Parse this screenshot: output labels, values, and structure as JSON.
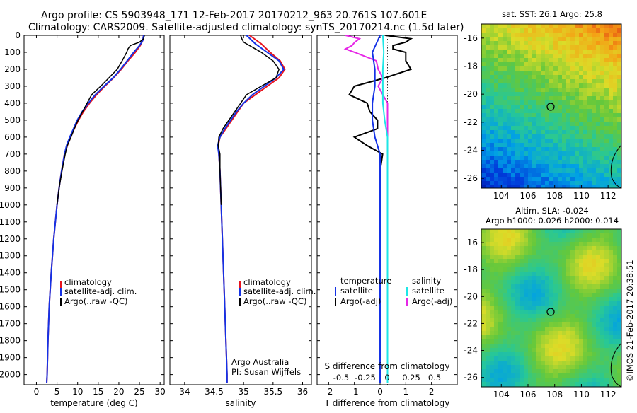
{
  "header": {
    "line1": "Argo profile: CS 5903948_171 12-Feb-2017 20170212_963 20.761S 107.601E",
    "line2": "Climatology: CARS2009. Satellite-adjusted climatology: synTS_20170214.nc (1.5d later)"
  },
  "colors": {
    "clim": "#e8141e",
    "sat": "#1432e6",
    "argo": "#000000",
    "sal_sat": "#1ee6e6",
    "sal_argo": "#e628e6"
  },
  "chart_data": [
    {
      "type": "line",
      "id": "temperature",
      "xlabel": "temperature (deg C)",
      "xlim": [
        -3,
        31
      ],
      "xticks": [
        "0",
        "5",
        "10",
        "15",
        "20",
        "25",
        "30"
      ],
      "ylim": [
        0,
        2060
      ],
      "yticks": [
        "0",
        "100",
        "200",
        "300",
        "400",
        "500",
        "600",
        "700",
        "800",
        "900",
        "1000",
        "1100",
        "1200",
        "1300",
        "1400",
        "1500",
        "1600",
        "1700",
        "1800",
        "1900",
        "2000"
      ],
      "legend": [
        "climatology",
        "satellite-adj. clim.",
        "Argo(..raw -QC)"
      ],
      "series": [
        {
          "name": "climatology",
          "depth": [
            0,
            30,
            60,
            100,
            150,
            200,
            250,
            300,
            350,
            400,
            450,
            500,
            550,
            600,
            650,
            700,
            800,
            900,
            1000,
            1200,
            1400,
            1600,
            1800,
            2000,
            2050
          ],
          "values": [
            26.0,
            25.8,
            25.2,
            24.0,
            22.2,
            20.6,
            18.7,
            16.6,
            14.6,
            12.9,
            11.4,
            10.2,
            9.2,
            8.3,
            7.5,
            6.8,
            6.1,
            5.5,
            5.0,
            4.2,
            3.6,
            3.1,
            2.8,
            2.6,
            2.5
          ]
        },
        {
          "name": "satellite-adj. clim.",
          "depth": [
            0,
            30,
            60,
            100,
            150,
            200,
            250,
            300,
            350,
            400,
            450,
            500,
            550,
            600,
            650,
            700,
            800,
            900,
            1000,
            1200,
            1400,
            1600,
            1800,
            2000,
            2050
          ],
          "values": [
            26.0,
            25.8,
            25.0,
            23.6,
            22.0,
            20.4,
            18.6,
            16.4,
            14.3,
            12.6,
            11.1,
            9.9,
            9.0,
            8.1,
            7.3,
            6.8,
            6.1,
            5.5,
            5.0,
            4.2,
            3.6,
            3.1,
            2.8,
            2.6,
            2.5
          ]
        },
        {
          "name": "Argo(..raw -QC)",
          "depth": [
            0,
            20,
            40,
            60,
            80,
            100,
            150,
            200,
            250,
            300,
            350,
            400,
            450,
            500,
            550,
            600,
            650,
            700,
            800,
            900,
            1000
          ],
          "values": [
            26.2,
            26.0,
            25.0,
            22.8,
            22.2,
            21.9,
            20.8,
            19.6,
            17.6,
            15.6,
            13.4,
            12.3,
            11.2,
            10.1,
            9.2,
            8.4,
            7.5,
            7.0,
            6.2,
            5.5,
            5.0
          ]
        }
      ]
    },
    {
      "type": "line",
      "id": "salinity",
      "xlabel": "salinity",
      "xlim": [
        33.75,
        36.15
      ],
      "xticks": [
        "34",
        "34.5",
        "35",
        "35.5",
        "36"
      ],
      "legend": [
        "climatology",
        "satellite-adj. clim.",
        "Argo(..raw -QC)"
      ],
      "annotation": [
        "Argo Australia",
        "PI: Susan Wijffels"
      ],
      "series": [
        {
          "name": "climatology",
          "depth": [
            0,
            50,
            100,
            150,
            200,
            250,
            300,
            350,
            400,
            450,
            500,
            550,
            600,
            650,
            700,
            800,
            1000,
            1500,
            2000,
            2050
          ],
          "values": [
            35.1,
            35.3,
            35.45,
            35.62,
            35.7,
            35.6,
            35.4,
            35.2,
            35.0,
            34.9,
            34.8,
            34.7,
            34.6,
            34.57,
            34.58,
            34.6,
            34.62,
            34.67,
            34.72,
            34.72
          ]
        },
        {
          "name": "satellite-adj. clim.",
          "depth": [
            0,
            50,
            100,
            150,
            200,
            250,
            300,
            350,
            400,
            450,
            500,
            550,
            600,
            650,
            700,
            800,
            1000,
            1500,
            2000,
            2050
          ],
          "values": [
            35.05,
            35.2,
            35.4,
            35.6,
            35.68,
            35.55,
            35.35,
            35.15,
            35.0,
            34.88,
            34.78,
            34.68,
            34.6,
            34.56,
            34.58,
            34.6,
            34.62,
            34.67,
            34.72,
            34.72
          ]
        },
        {
          "name": "Argo(..raw -QC)",
          "depth": [
            0,
            20,
            40,
            60,
            80,
            100,
            150,
            200,
            250,
            300,
            350,
            400,
            450,
            500,
            550,
            600,
            650,
            700,
            800,
            900,
            1000
          ],
          "values": [
            34.95,
            34.97,
            35.0,
            35.1,
            35.2,
            35.3,
            35.5,
            35.6,
            35.55,
            35.3,
            35.05,
            34.95,
            34.85,
            34.75,
            34.65,
            34.58,
            34.57,
            34.6,
            34.6,
            34.61,
            34.62
          ]
        }
      ]
    },
    {
      "type": "line",
      "id": "difference",
      "xlabel": "T difference from climatology",
      "xlim": [
        -2.45,
        3.0
      ],
      "xticks": [
        "-2",
        "-1",
        "0",
        "1",
        "2"
      ],
      "s_label": "S difference from climatology",
      "s_ticks": [
        "-0.5",
        "-0.25",
        "0",
        "0.25",
        "0.5"
      ],
      "legend_headers": [
        "temperature",
        "salinity"
      ],
      "legend": [
        "satellite",
        "Argo(-adj)",
        "satellite",
        "Argo(-adj)"
      ],
      "series": [
        {
          "name": "T satellite",
          "depth": [
            0,
            100,
            200,
            300,
            400,
            500,
            600,
            700,
            800,
            1000,
            1500,
            2000,
            2050
          ],
          "values": [
            0.0,
            -0.3,
            -0.2,
            -0.2,
            -0.3,
            -0.3,
            -0.2,
            0.0,
            0.0,
            0.0,
            0.0,
            0.0,
            0.0
          ]
        },
        {
          "name": "T Argo(-adj)",
          "depth": [
            0,
            20,
            40,
            60,
            80,
            100,
            150,
            200,
            250,
            300,
            350,
            400,
            450,
            500,
            550,
            600,
            650,
            700,
            800,
            900,
            1000
          ],
          "values": [
            0.2,
            1.2,
            1.0,
            0.5,
            0.5,
            1.0,
            1.0,
            1.2,
            0.2,
            -1.0,
            -1.2,
            -0.5,
            -0.4,
            -0.1,
            -0.1,
            -1.0,
            -0.5,
            0.1,
            0.0,
            0.0,
            0.0
          ]
        },
        {
          "name": "S satellite",
          "depth": [
            0,
            100,
            200,
            300,
            400,
            500,
            600,
            700,
            800,
            1000,
            1500,
            2000,
            2050
          ],
          "values": [
            -0.05,
            -0.04,
            -0.05,
            -0.05,
            -0.05,
            -0.03,
            0.0,
            0.0,
            0.0,
            0.0,
            0.0,
            0.0,
            0.0
          ]
        },
        {
          "name": "S Argo(-adj)",
          "depth": [
            0,
            20,
            40,
            60,
            80,
            100,
            150,
            200,
            250,
            300,
            350,
            400,
            500,
            600,
            700,
            800,
            900,
            1000,
            1500,
            2000
          ],
          "values": [
            -0.45,
            -0.3,
            -0.35,
            -0.38,
            -0.45,
            -0.35,
            -0.12,
            -0.1,
            -0.05,
            -0.1,
            -0.05,
            0.0,
            0.0,
            0.0,
            0.0,
            0.0,
            0.0,
            0.0,
            0.0,
            0.0
          ]
        }
      ]
    },
    {
      "type": "heatmap",
      "id": "sst_map",
      "title": "sat. SST: 26.1  Argo: 25.8",
      "xticks": [
        "104",
        "106",
        "108",
        "110",
        "112"
      ],
      "yticks": [
        "-16",
        "-18",
        "-20",
        "-22",
        "-24",
        "-26"
      ],
      "profile_lon": 107.6,
      "profile_lat": -20.76
    },
    {
      "type": "heatmap",
      "id": "sla_map",
      "title1": "Altim. SLA: -0.024",
      "title2": "Argo h1000: 0.026 h2000: 0.014",
      "xticks": [
        "104",
        "106",
        "108",
        "110",
        "112"
      ],
      "yticks": [
        "-16",
        "-18",
        "-20",
        "-22",
        "-24",
        "-26"
      ],
      "profile_lon": 107.6,
      "profile_lat": -20.76
    }
  ],
  "footer": {
    "credit": "©IMOS 21-Feb-2017 20:38:51"
  }
}
